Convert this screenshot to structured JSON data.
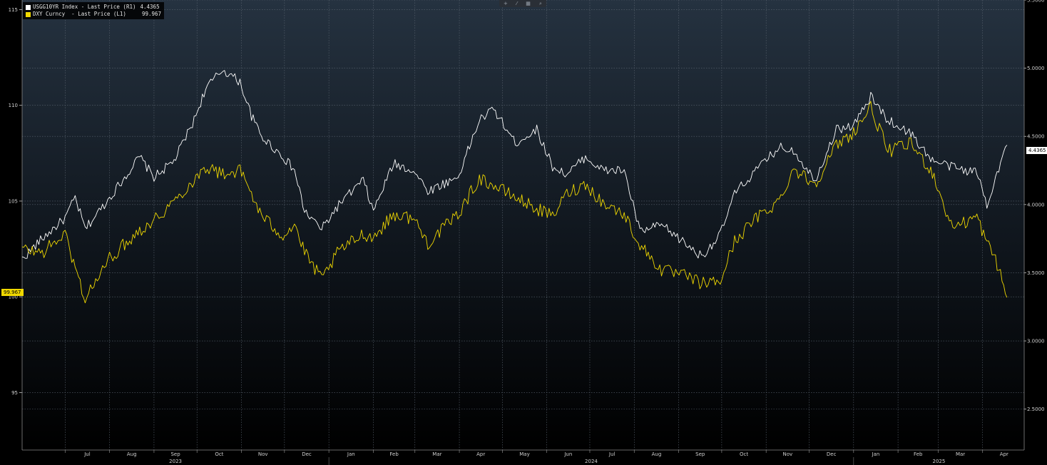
{
  "toolbar": {
    "icons": [
      {
        "name": "crosshair-icon",
        "glyph": "+"
      },
      {
        "name": "pencil-icon",
        "glyph": "⁄"
      },
      {
        "name": "grid-icon",
        "glyph": "▦"
      },
      {
        "name": "zoom-icon",
        "glyph": "⌕"
      }
    ]
  },
  "legend": {
    "items": [
      {
        "label": "USGG10YR Index - Last Price (R1)",
        "value": "4.4365",
        "color": "#ffffff"
      },
      {
        "label": "DXY Curncy  - Last Price (L1)",
        "value": "99.967",
        "color": "#f0d800"
      }
    ]
  },
  "last_tags": {
    "left": "99.967",
    "right": "4.4365"
  },
  "chart_data": {
    "type": "line",
    "x_axis": {
      "months": [
        "Jul",
        "Aug",
        "Sep",
        "Oct",
        "Nov",
        "Dec",
        "Jan",
        "Feb",
        "Mar",
        "Apr",
        "May",
        "Jun",
        "Jul",
        "Aug",
        "Sep",
        "Oct",
        "Nov",
        "Dec",
        "Jan",
        "Feb",
        "Mar",
        "Apr"
      ],
      "years": [
        "2023",
        "2024",
        "2025"
      ],
      "range": [
        "2023-06-01",
        "2025-04-30"
      ]
    },
    "y_left": {
      "ticks": [
        "115",
        "110",
        "105",
        "100",
        "95"
      ],
      "range": [
        92,
        115.5
      ]
    },
    "y_right": {
      "ticks": [
        "5.5000",
        "5.0000",
        "4.5000",
        "4.0000",
        "3.5000",
        "3.0000",
        "2.5000"
      ],
      "range": [
        2.2,
        5.5
      ]
    },
    "grid": true,
    "legend_position": "top-left",
    "series": [
      {
        "name": "USGG10YR Index - Last Price (R1)",
        "axis": "right",
        "color": "#ffffff",
        "points": [
          [
            "2023-06-01",
            3.6
          ],
          [
            "2023-06-15",
            3.75
          ],
          [
            "2023-07-01",
            3.9
          ],
          [
            "2023-07-08",
            4.05
          ],
          [
            "2023-07-15",
            3.82
          ],
          [
            "2023-08-01",
            4.05
          ],
          [
            "2023-08-15",
            4.25
          ],
          [
            "2023-08-22",
            4.35
          ],
          [
            "2023-09-01",
            4.2
          ],
          [
            "2023-09-15",
            4.32
          ],
          [
            "2023-09-29",
            4.62
          ],
          [
            "2023-10-07",
            4.85
          ],
          [
            "2023-10-19",
            4.99
          ],
          [
            "2023-10-31",
            4.9
          ],
          [
            "2023-11-08",
            4.65
          ],
          [
            "2023-11-15",
            4.5
          ],
          [
            "2023-11-30",
            4.35
          ],
          [
            "2023-12-08",
            4.25
          ],
          [
            "2023-12-15",
            3.95
          ],
          [
            "2023-12-27",
            3.82
          ],
          [
            "2024-01-08",
            4.0
          ],
          [
            "2024-01-25",
            4.18
          ],
          [
            "2024-02-01",
            3.95
          ],
          [
            "2024-02-15",
            4.3
          ],
          [
            "2024-02-29",
            4.25
          ],
          [
            "2024-03-10",
            4.1
          ],
          [
            "2024-03-31",
            4.2
          ],
          [
            "2024-04-15",
            4.62
          ],
          [
            "2024-04-25",
            4.7
          ],
          [
            "2024-05-10",
            4.45
          ],
          [
            "2024-05-25",
            4.55
          ],
          [
            "2024-06-05",
            4.28
          ],
          [
            "2024-06-15",
            4.22
          ],
          [
            "2024-06-28",
            4.35
          ],
          [
            "2024-07-10",
            4.25
          ],
          [
            "2024-07-25",
            4.25
          ],
          [
            "2024-08-05",
            3.8
          ],
          [
            "2024-08-20",
            3.85
          ],
          [
            "2024-09-05",
            3.72
          ],
          [
            "2024-09-17",
            3.62
          ],
          [
            "2024-09-30",
            3.78
          ],
          [
            "2024-10-10",
            4.08
          ],
          [
            "2024-10-25",
            4.25
          ],
          [
            "2024-11-10",
            4.42
          ],
          [
            "2024-11-20",
            4.4
          ],
          [
            "2024-12-05",
            4.18
          ],
          [
            "2024-12-20",
            4.55
          ],
          [
            "2025-01-01",
            4.58
          ],
          [
            "2025-01-13",
            4.79
          ],
          [
            "2025-01-25",
            4.62
          ],
          [
            "2025-02-10",
            4.52
          ],
          [
            "2025-02-25",
            4.32
          ],
          [
            "2025-03-10",
            4.28
          ],
          [
            "2025-03-20",
            4.25
          ],
          [
            "2025-03-28",
            4.24
          ],
          [
            "2025-04-04",
            4.0
          ],
          [
            "2025-04-10",
            4.2
          ],
          [
            "2025-04-18",
            4.4365
          ]
        ]
      },
      {
        "name": "DXY Curncy  - Last Price (L1)",
        "axis": "left",
        "color": "#f0d800",
        "points": [
          [
            "2023-06-01",
            102.5
          ],
          [
            "2023-06-15",
            102.3
          ],
          [
            "2023-07-01",
            103.3
          ],
          [
            "2023-07-08",
            101.5
          ],
          [
            "2023-07-15",
            99.9
          ],
          [
            "2023-08-01",
            102.0
          ],
          [
            "2023-08-15",
            103.0
          ],
          [
            "2023-08-22",
            103.5
          ],
          [
            "2023-09-01",
            104.0
          ],
          [
            "2023-09-15",
            105.0
          ],
          [
            "2023-09-29",
            106.1
          ],
          [
            "2023-10-07",
            106.8
          ],
          [
            "2023-10-19",
            106.4
          ],
          [
            "2023-10-31",
            106.6
          ],
          [
            "2023-11-08",
            105.4
          ],
          [
            "2023-11-15",
            104.2
          ],
          [
            "2023-11-30",
            103.2
          ],
          [
            "2023-12-08",
            103.8
          ],
          [
            "2023-12-15",
            102.3
          ],
          [
            "2023-12-27",
            100.9
          ],
          [
            "2024-01-08",
            102.4
          ],
          [
            "2024-01-25",
            103.3
          ],
          [
            "2024-02-01",
            103.1
          ],
          [
            "2024-02-15",
            104.3
          ],
          [
            "2024-02-29",
            104.1
          ],
          [
            "2024-03-10",
            102.8
          ],
          [
            "2024-03-31",
            104.3
          ],
          [
            "2024-04-15",
            106.2
          ],
          [
            "2024-04-25",
            105.8
          ],
          [
            "2024-05-10",
            105.2
          ],
          [
            "2024-05-25",
            104.6
          ],
          [
            "2024-06-05",
            104.2
          ],
          [
            "2024-06-15",
            105.4
          ],
          [
            "2024-06-28",
            105.9
          ],
          [
            "2024-07-10",
            104.9
          ],
          [
            "2024-07-25",
            104.3
          ],
          [
            "2024-08-05",
            102.7
          ],
          [
            "2024-08-20",
            101.4
          ],
          [
            "2024-09-05",
            101.1
          ],
          [
            "2024-09-17",
            100.7
          ],
          [
            "2024-09-30",
            100.8
          ],
          [
            "2024-10-10",
            102.9
          ],
          [
            "2024-10-25",
            104.1
          ],
          [
            "2024-11-10",
            105.0
          ],
          [
            "2024-11-20",
            106.7
          ],
          [
            "2024-12-05",
            105.9
          ],
          [
            "2024-12-20",
            107.9
          ],
          [
            "2025-01-01",
            108.6
          ],
          [
            "2025-01-13",
            109.9
          ],
          [
            "2025-01-25",
            107.6
          ],
          [
            "2025-02-10",
            108.0
          ],
          [
            "2025-02-25",
            106.5
          ],
          [
            "2025-03-10",
            103.7
          ],
          [
            "2025-03-20",
            103.9
          ],
          [
            "2025-03-28",
            104.2
          ],
          [
            "2025-04-04",
            102.8
          ],
          [
            "2025-04-10",
            102.0
          ],
          [
            "2025-04-18",
            99.967
          ]
        ]
      }
    ]
  }
}
